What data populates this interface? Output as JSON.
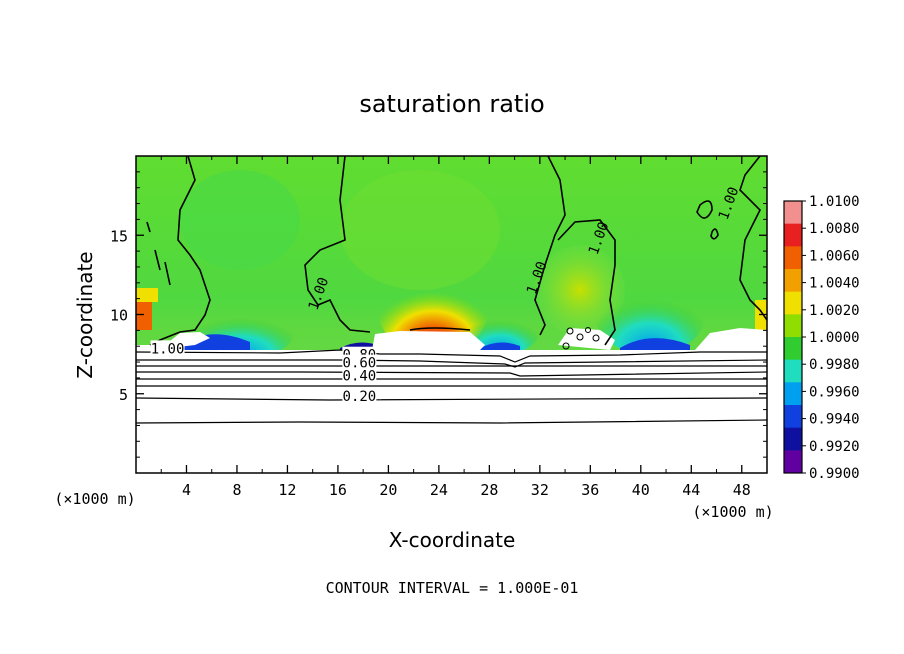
{
  "chart_data": {
    "type": "heatmap",
    "title": "saturation ratio",
    "xlabel": "X-coordinate",
    "ylabel": "Z-coordinate",
    "x_unit_note": "(×1000 m)",
    "z_unit_note": "(×1000 m)",
    "xlim": [
      0,
      50
    ],
    "ylim": [
      0,
      20
    ],
    "x_ticks": [
      4,
      8,
      12,
      16,
      20,
      24,
      28,
      32,
      36,
      40,
      44,
      48
    ],
    "y_ticks": [
      5,
      10,
      15
    ],
    "footer": "CONTOUR INTERVAL = 1.000E-01",
    "colorbar": {
      "min": 0.99,
      "max": 1.01,
      "labels": [
        "1.0100",
        "1.0080",
        "1.0060",
        "1.0040",
        "1.0020",
        "1.0000",
        "0.9980",
        "0.9960",
        "0.9940",
        "0.9920",
        "0.9900"
      ],
      "colors": [
        "#f29090",
        "#e82020",
        "#f06000",
        "#f2a000",
        "#f0e000",
        "#90dd00",
        "#30cc30",
        "#20ddc0",
        "#00a0f0",
        "#1040e0",
        "#1010a0",
        "#6000a0"
      ]
    },
    "contour_labels": [
      {
        "text": "1.00",
        "x": 2.5,
        "z": 7.8
      },
      {
        "text": "0.80",
        "x": 17.7,
        "z": 7.4
      },
      {
        "text": "0.60",
        "x": 17.7,
        "z": 6.9
      },
      {
        "text": "0.40",
        "x": 17.7,
        "z": 6.1
      },
      {
        "text": "0.20",
        "x": 17.7,
        "z": 4.8
      },
      {
        "text": "1.00",
        "x": 14.5,
        "z": 11.3
      },
      {
        "text": "1.00",
        "x": 31.8,
        "z": 12.3
      },
      {
        "text": "1.00",
        "x": 36.7,
        "z": 14.8
      },
      {
        "text": "1.00",
        "x": 47.0,
        "z": 17.0
      }
    ],
    "grid": false
  }
}
